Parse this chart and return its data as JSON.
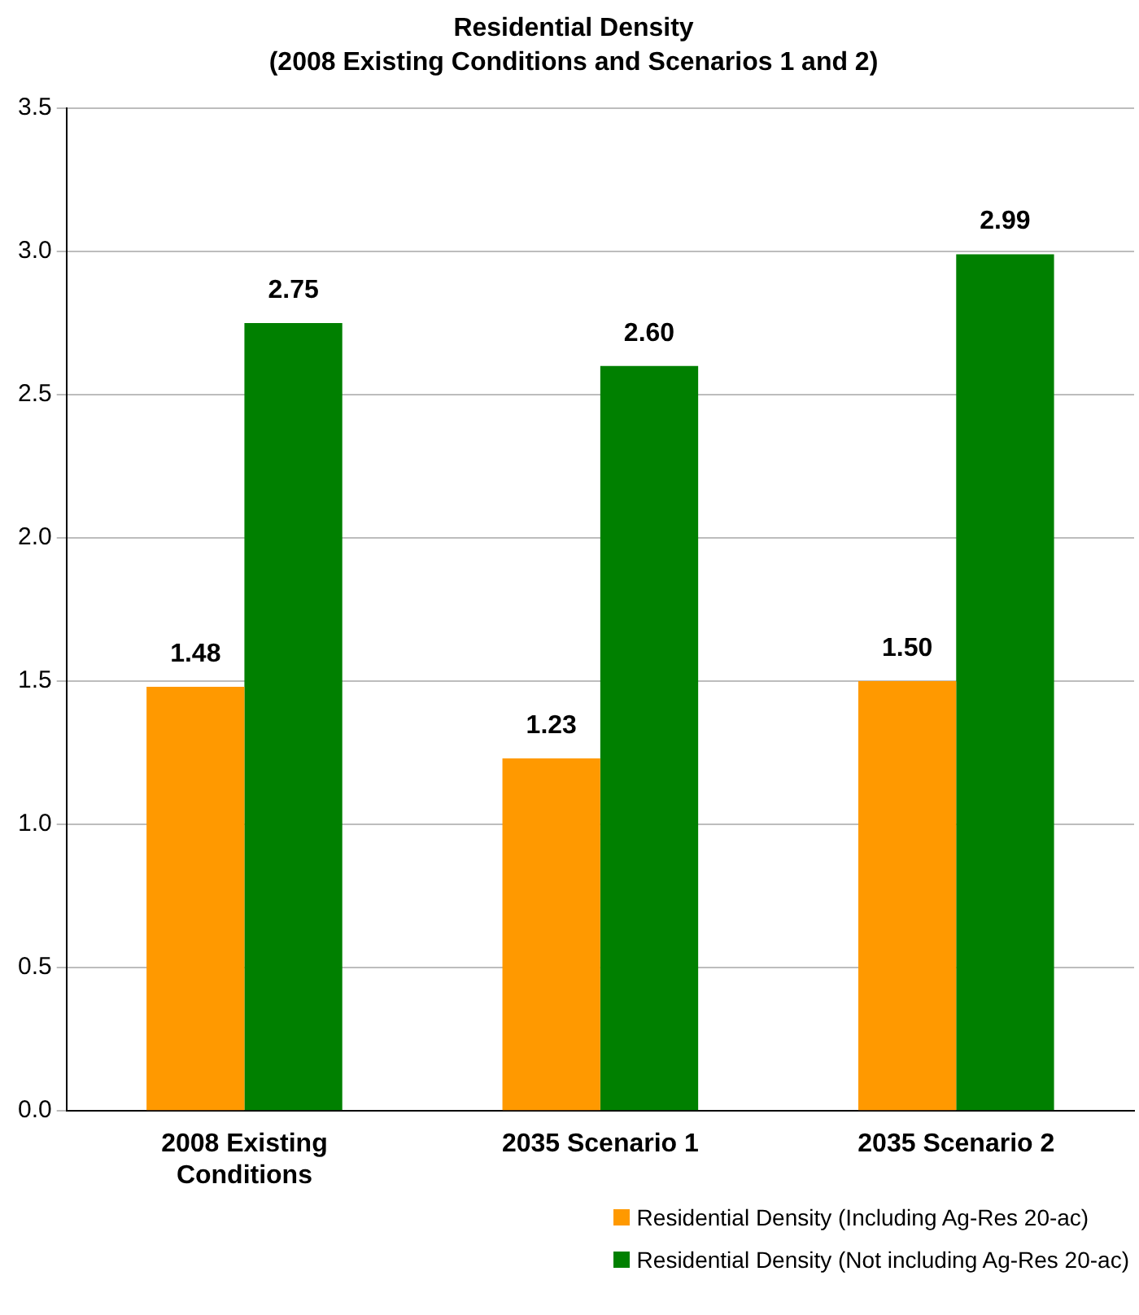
{
  "chart_data": {
    "type": "bar",
    "title": "Residential Density",
    "subtitle": "(2008 Existing Conditions and Scenarios 1 and 2)",
    "categories": [
      "2008 Existing Conditions",
      "2035 Scenario 1",
      "2035 Scenario 2"
    ],
    "series": [
      {
        "name": "Residential Density (Including Ag-Res 20-ac)",
        "color": "#ff9900",
        "values": [
          1.48,
          1.23,
          1.5
        ],
        "value_labels": [
          "1.48",
          "1.23",
          "1.50"
        ]
      },
      {
        "name": "Residential Density (Not including Ag-Res 20-ac)",
        "color": "#008000",
        "values": [
          2.75,
          2.6,
          2.99
        ],
        "value_labels": [
          "2.75",
          "2.60",
          "2.99"
        ]
      }
    ],
    "ylim": [
      0,
      3.5
    ],
    "yticks": [
      {
        "value": 0,
        "label": "0.0"
      },
      {
        "value": 0.5,
        "label": "0.5"
      },
      {
        "value": 1,
        "label": "1.0"
      },
      {
        "value": 1.5,
        "label": "1.5"
      },
      {
        "value": 2,
        "label": "2.0"
      },
      {
        "value": 2.5,
        "label": "2.5"
      },
      {
        "value": 3,
        "label": "3.0"
      },
      {
        "value": 3.5,
        "label": "3.5"
      }
    ],
    "grid": "y",
    "legend": "bottom right"
  }
}
